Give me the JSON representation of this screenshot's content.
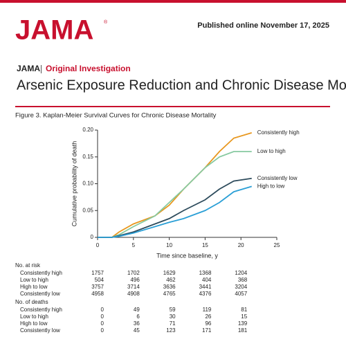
{
  "header": {
    "logo": "JAMA",
    "logo_mark": "®",
    "published": "Published online November 17, 2025",
    "journal": "JAMA",
    "section": "Original Investigation",
    "title": "Arsenic Exposure Reduction and Chronic Disease Mortality",
    "figure_caption": "Figure 3. Kaplan-Meier Survival Curves for Chronic Disease Mortality"
  },
  "chart_data": {
    "type": "line",
    "x_label": "Time since baseline, y",
    "y_label": "Cumulative probability of death",
    "x": [
      0,
      2,
      3,
      5,
      8,
      10,
      12,
      15,
      17,
      19,
      21.5
    ],
    "series": [
      {
        "name": "Consistently high",
        "color": "#e8971e",
        "values": [
          0,
          0,
          0.01,
          0.025,
          0.04,
          0.06,
          0.09,
          0.13,
          0.16,
          0.185,
          0.195
        ]
      },
      {
        "name": "Low to high",
        "color": "#86c9a0",
        "values": [
          0,
          0,
          0.005,
          0.02,
          0.04,
          0.065,
          0.09,
          0.13,
          0.15,
          0.16,
          0.16
        ]
      },
      {
        "name": "Consistently low",
        "color": "#2d4b5c",
        "values": [
          0,
          0,
          0.003,
          0.01,
          0.025,
          0.035,
          0.05,
          0.07,
          0.09,
          0.105,
          0.11
        ]
      },
      {
        "name": "High to low",
        "color": "#2a9fd6",
        "values": [
          0,
          0,
          0.002,
          0.008,
          0.02,
          0.028,
          0.035,
          0.05,
          0.065,
          0.085,
          0.095
        ]
      }
    ],
    "xlim": [
      0,
      25
    ],
    "xticks": [
      0,
      5,
      10,
      15,
      20,
      25
    ],
    "ylim": [
      0,
      0.2
    ],
    "yticks": [
      0,
      0.05,
      {
        "value": 0.1,
        "label": "0.10"
      },
      0.15,
      {
        "value": 0.2,
        "label": "0.20"
      }
    ],
    "grid": false
  },
  "risk_table": {
    "title": "No. at risk",
    "rows": [
      {
        "label": "Consistently high",
        "values": [
          1757,
          1702,
          1629,
          1368,
          1204
        ]
      },
      {
        "label": "Low to high",
        "values": [
          504,
          496,
          462,
          404,
          368
        ]
      },
      {
        "label": "High to low",
        "values": [
          3757,
          3714,
          3636,
          3441,
          3204
        ]
      },
      {
        "label": "Consistently low",
        "values": [
          4958,
          4908,
          4765,
          4376,
          4057
        ]
      }
    ]
  },
  "death_table": {
    "title": "No. of deaths",
    "rows": [
      {
        "label": "Consistently high",
        "values": [
          0,
          49,
          59,
          119,
          81
        ]
      },
      {
        "label": "Low to high",
        "values": [
          0,
          6,
          30,
          26,
          15
        ]
      },
      {
        "label": "High to low",
        "values": [
          0,
          36,
          71,
          96,
          139
        ]
      },
      {
        "label": "Consistently low",
        "values": [
          0,
          45,
          123,
          171,
          181
        ]
      }
    ]
  }
}
